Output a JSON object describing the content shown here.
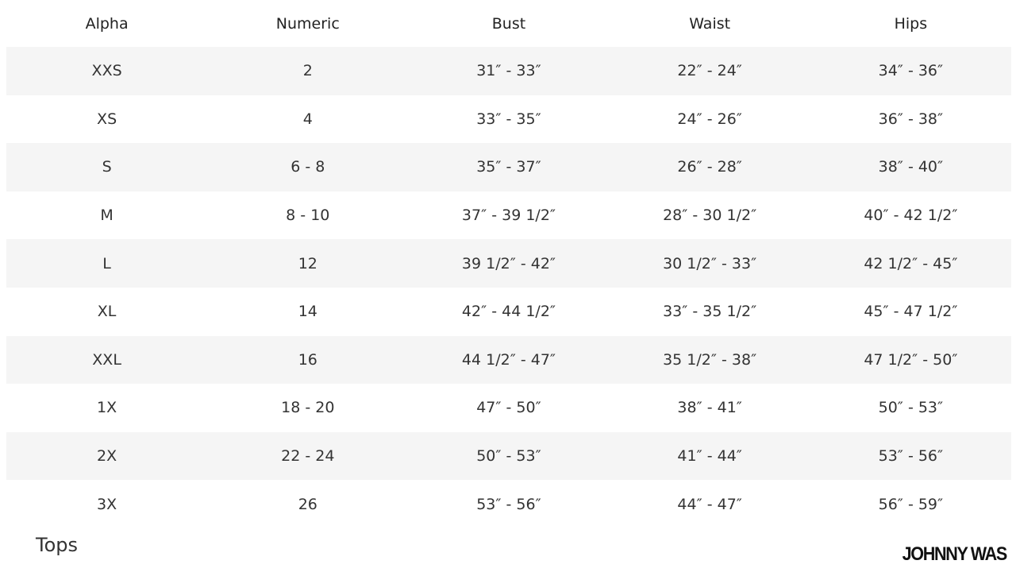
{
  "table": {
    "headers": [
      "Alpha",
      "Numeric",
      "Bust",
      "Waist",
      "Hips"
    ],
    "rows": [
      [
        "XXS",
        "2",
        "31″ - 33″",
        "22″ - 24″",
        "34″ - 36″"
      ],
      [
        "XS",
        "4",
        "33″ - 35″",
        "24″ - 26″",
        "36″ - 38″"
      ],
      [
        "S",
        "6 - 8",
        "35″ - 37″",
        "26″ - 28″",
        "38″ - 40″"
      ],
      [
        "M",
        "8 - 10",
        "37″ - 39 1/2″",
        "28″ - 30 1/2″",
        "40″ - 42 1/2″"
      ],
      [
        "L",
        "12",
        "39 1/2″ - 42″",
        "30 1/2″ - 33″",
        "42 1/2″ - 45″"
      ],
      [
        "XL",
        "14",
        "42″ - 44 1/2″",
        "33″ - 35 1/2″",
        "45″ - 47 1/2″"
      ],
      [
        "XXL",
        "16",
        "44 1/2″ - 47″",
        "35 1/2″ - 38″",
        "47 1/2″ - 50″"
      ],
      [
        "1X",
        "18 - 20",
        "47″ - 50″",
        "38″ - 41″",
        "50″ - 53″"
      ],
      [
        "2X",
        "22 - 24",
        "50″ - 53″",
        "41″ - 44″",
        "53″ - 56″"
      ],
      [
        "3X",
        "26",
        "53″ - 56″",
        "44″ - 47″",
        "56″ - 59″"
      ]
    ]
  },
  "section_label": "Tops",
  "brand": "JOHNNY WAS"
}
